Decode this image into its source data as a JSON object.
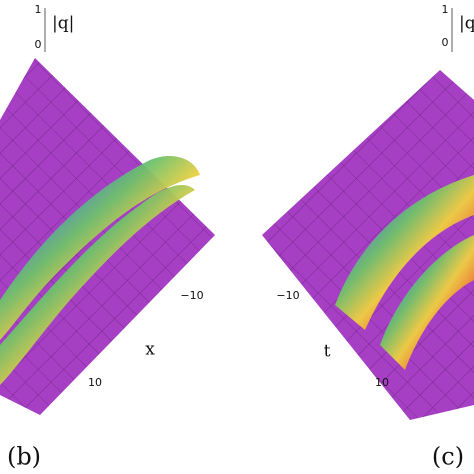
{
  "panels": [
    {
      "label": "(b)",
      "z_axis": {
        "label": "|q|",
        "ticks": [
          "1",
          "0"
        ]
      },
      "horizontal_axis": {
        "label": "x",
        "ticks": [
          "−10",
          "10"
        ]
      }
    },
    {
      "label": "(c)",
      "z_axis": {
        "label": "|q",
        "ticks": [
          "1",
          "0"
        ]
      },
      "horizontal_axis": {
        "label": "t",
        "ticks": [
          "−10",
          "10"
        ]
      }
    }
  ]
}
